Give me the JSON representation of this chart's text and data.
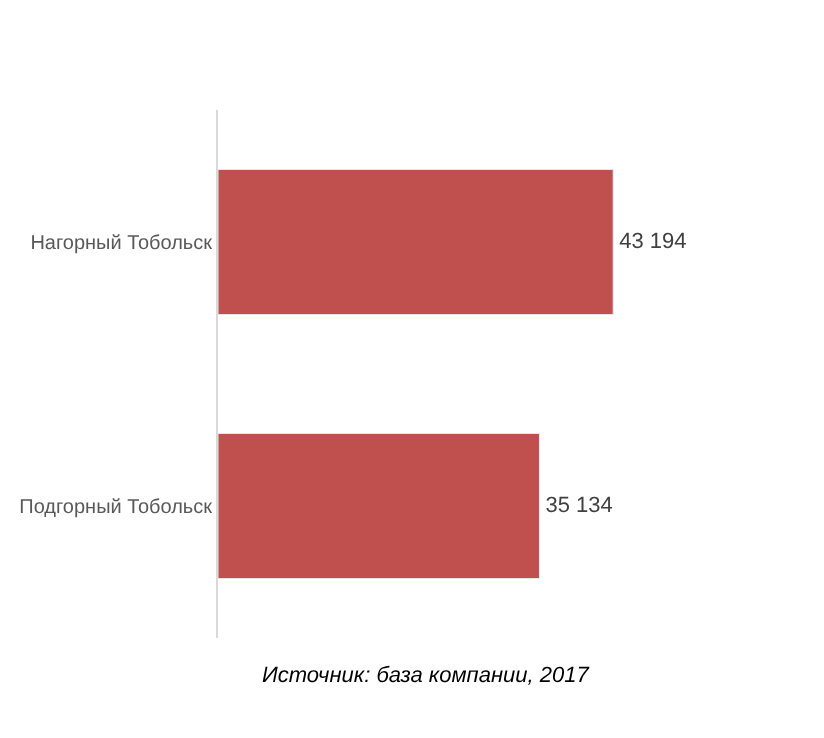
{
  "chart_data": {
    "type": "bar",
    "orientation": "horizontal",
    "categories": [
      "Нагорный Тобольск",
      "Подгорный Тобольск"
    ],
    "values": [
      43194,
      35134
    ],
    "value_labels": [
      "43 194",
      "35 134"
    ],
    "color": "#c0504d",
    "tick_labels": "y",
    "annotations": [
      "Источник: база компании, 2017"
    ]
  }
}
